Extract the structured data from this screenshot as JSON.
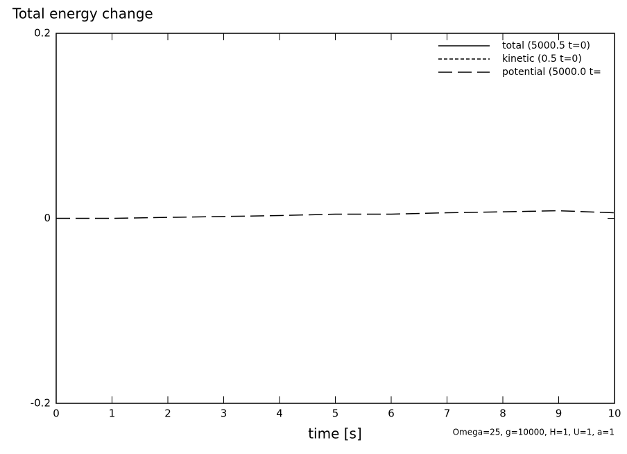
{
  "chart_data": {
    "type": "line",
    "title": "Total energy change",
    "x_label": "time [s]",
    "annotation": "Omega=25, g=10000, H=1, U=1, a=1",
    "x": [
      0,
      1,
      2,
      3,
      4,
      5,
      6,
      7,
      8,
      9,
      10
    ],
    "series": [
      {
        "name": "total (5000.5 t=0)",
        "color": "#000000",
        "dash": "solid",
        "values": [
          null,
          null,
          null,
          null,
          null,
          null,
          null,
          null,
          null,
          null,
          null
        ]
      },
      {
        "name": "kinetic (0.5 t=0)",
        "color": "#000000",
        "dash": "short",
        "values": [
          null,
          null,
          null,
          null,
          null,
          null,
          null,
          null,
          null,
          null,
          null
        ]
      },
      {
        "name": "potential (5000.0 t=",
        "color": "#000000",
        "dash": "long",
        "values": [
          0,
          0,
          0.001,
          0.002,
          0.003,
          0.0045,
          0.0045,
          0.006,
          0.007,
          0.0082,
          0.006
        ]
      }
    ],
    "xlim": [
      0,
      10
    ],
    "xticks": [
      0,
      1,
      2,
      3,
      4,
      5,
      6,
      7,
      8,
      9,
      10
    ],
    "ylim": [
      -0.2,
      0.2
    ],
    "yticks": [
      -0.2,
      0,
      0.2
    ],
    "legend": "top-right"
  }
}
